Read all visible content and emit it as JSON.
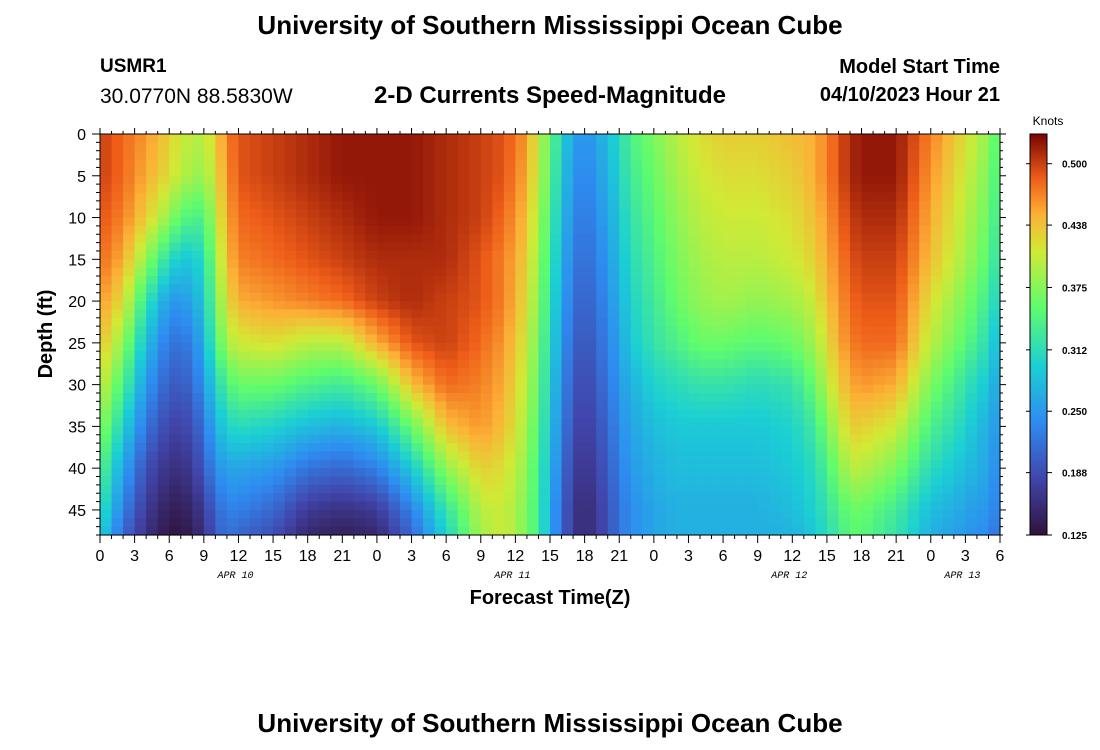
{
  "header": {
    "title": "University of Southern Mississippi Ocean Cube",
    "station_id": "USMR1",
    "coordinates": "30.0770N  88.5830W",
    "subtitle": "2-D Currents Speed-Magnitude",
    "model_start_label": "Model Start Time",
    "model_start_value": "04/10/2023 Hour 21"
  },
  "footer": {
    "title": "University of Southern Mississippi Ocean Cube"
  },
  "chart_data": {
    "type": "heatmap",
    "title": "2-D Currents Speed-Magnitude",
    "xlabel": "Forecast Time(Z)",
    "ylabel": "Depth (ft)",
    "x_unit": "hours since 04/10/2023 00Z",
    "xlim": [
      0,
      78
    ],
    "ylim": [
      48,
      0
    ],
    "x_ticks": [
      {
        "h": 0,
        "label": "0"
      },
      {
        "h": 3,
        "label": "3"
      },
      {
        "h": 6,
        "label": "6"
      },
      {
        "h": 9,
        "label": "9"
      },
      {
        "h": 12,
        "label": "12"
      },
      {
        "h": 15,
        "label": "15"
      },
      {
        "h": 18,
        "label": "18"
      },
      {
        "h": 21,
        "label": "21"
      },
      {
        "h": 24,
        "label": "0"
      },
      {
        "h": 27,
        "label": "3"
      },
      {
        "h": 30,
        "label": "6"
      },
      {
        "h": 33,
        "label": "9"
      },
      {
        "h": 36,
        "label": "12"
      },
      {
        "h": 39,
        "label": "15"
      },
      {
        "h": 42,
        "label": "18"
      },
      {
        "h": 45,
        "label": "21"
      },
      {
        "h": 48,
        "label": "0"
      },
      {
        "h": 51,
        "label": "3"
      },
      {
        "h": 54,
        "label": "6"
      },
      {
        "h": 57,
        "label": "9"
      },
      {
        "h": 60,
        "label": "12"
      },
      {
        "h": 63,
        "label": "15"
      },
      {
        "h": 66,
        "label": "18"
      },
      {
        "h": 69,
        "label": "21"
      },
      {
        "h": 72,
        "label": "0"
      },
      {
        "h": 75,
        "label": "3"
      },
      {
        "h": 78,
        "label": "6"
      }
    ],
    "y_ticks": [
      0,
      5,
      10,
      15,
      20,
      25,
      30,
      35,
      40,
      45
    ],
    "date_labels": [
      {
        "h": 12,
        "label": "APR 10"
      },
      {
        "h": 36,
        "label": "APR 11"
      },
      {
        "h": 60,
        "label": "APR 12"
      },
      {
        "h": 75,
        "label": "APR 13"
      }
    ],
    "colorbar": {
      "title": "Knots",
      "min": 0.125,
      "max": 0.53,
      "ticks": [
        "0.125",
        "0.188",
        "0.250",
        "0.312",
        "0.375",
        "0.438",
        "0.500"
      ]
    },
    "time_hours": [
      0,
      2,
      4,
      6,
      7,
      8,
      9,
      10,
      11,
      12,
      15,
      18,
      21,
      24,
      27,
      30,
      33,
      35,
      37,
      38,
      39,
      40,
      41,
      42,
      44,
      45,
      46,
      48,
      50,
      52,
      54,
      57,
      60,
      62,
      63,
      64,
      65,
      66,
      69,
      72,
      75,
      76,
      77,
      78
    ],
    "depth_ft": [
      0,
      5,
      10,
      15,
      20,
      25,
      30,
      35,
      40,
      45,
      48
    ],
    "values_knots_by_depth": [
      [
        0.5,
        0.48,
        0.46,
        0.43,
        0.41,
        0.4,
        0.4,
        0.43,
        0.47,
        0.49,
        0.5,
        0.51,
        0.52,
        0.52,
        0.52,
        0.51,
        0.5,
        0.49,
        0.46,
        0.4,
        0.36,
        0.3,
        0.26,
        0.24,
        0.28,
        0.31,
        0.34,
        0.37,
        0.4,
        0.42,
        0.43,
        0.43,
        0.44,
        0.45,
        0.47,
        0.49,
        0.51,
        0.52,
        0.52,
        0.47,
        0.42,
        0.4,
        0.38,
        0.34
      ],
      [
        0.5,
        0.48,
        0.45,
        0.42,
        0.4,
        0.39,
        0.38,
        0.42,
        0.46,
        0.49,
        0.5,
        0.51,
        0.52,
        0.52,
        0.52,
        0.51,
        0.5,
        0.49,
        0.45,
        0.4,
        0.35,
        0.29,
        0.25,
        0.23,
        0.27,
        0.3,
        0.33,
        0.36,
        0.39,
        0.41,
        0.42,
        0.42,
        0.43,
        0.45,
        0.47,
        0.49,
        0.51,
        0.52,
        0.52,
        0.46,
        0.41,
        0.39,
        0.37,
        0.33
      ],
      [
        0.49,
        0.47,
        0.43,
        0.38,
        0.35,
        0.34,
        0.34,
        0.4,
        0.45,
        0.48,
        0.49,
        0.5,
        0.51,
        0.52,
        0.52,
        0.51,
        0.5,
        0.48,
        0.44,
        0.39,
        0.34,
        0.28,
        0.24,
        0.22,
        0.26,
        0.29,
        0.32,
        0.35,
        0.38,
        0.4,
        0.41,
        0.41,
        0.42,
        0.44,
        0.46,
        0.48,
        0.5,
        0.51,
        0.51,
        0.45,
        0.4,
        0.38,
        0.36,
        0.32
      ],
      [
        0.48,
        0.45,
        0.38,
        0.31,
        0.29,
        0.29,
        0.31,
        0.38,
        0.44,
        0.47,
        0.48,
        0.49,
        0.5,
        0.51,
        0.51,
        0.51,
        0.49,
        0.47,
        0.43,
        0.38,
        0.33,
        0.27,
        0.23,
        0.21,
        0.25,
        0.28,
        0.31,
        0.34,
        0.37,
        0.39,
        0.4,
        0.4,
        0.41,
        0.43,
        0.45,
        0.47,
        0.49,
        0.5,
        0.5,
        0.44,
        0.39,
        0.37,
        0.35,
        0.31
      ],
      [
        0.46,
        0.42,
        0.32,
        0.25,
        0.25,
        0.26,
        0.29,
        0.36,
        0.42,
        0.45,
        0.46,
        0.47,
        0.48,
        0.5,
        0.51,
        0.5,
        0.49,
        0.47,
        0.42,
        0.37,
        0.32,
        0.26,
        0.22,
        0.2,
        0.24,
        0.27,
        0.3,
        0.33,
        0.36,
        0.38,
        0.39,
        0.38,
        0.39,
        0.41,
        0.44,
        0.46,
        0.48,
        0.49,
        0.49,
        0.42,
        0.37,
        0.35,
        0.33,
        0.29
      ],
      [
        0.44,
        0.38,
        0.28,
        0.22,
        0.22,
        0.23,
        0.27,
        0.34,
        0.39,
        0.41,
        0.42,
        0.4,
        0.4,
        0.45,
        0.49,
        0.5,
        0.48,
        0.46,
        0.41,
        0.36,
        0.31,
        0.25,
        0.21,
        0.19,
        0.23,
        0.26,
        0.29,
        0.32,
        0.34,
        0.36,
        0.36,
        0.35,
        0.36,
        0.39,
        0.42,
        0.45,
        0.47,
        0.48,
        0.48,
        0.4,
        0.35,
        0.33,
        0.31,
        0.27
      ],
      [
        0.41,
        0.34,
        0.25,
        0.2,
        0.2,
        0.21,
        0.25,
        0.3,
        0.34,
        0.36,
        0.36,
        0.34,
        0.33,
        0.36,
        0.44,
        0.48,
        0.47,
        0.45,
        0.4,
        0.35,
        0.3,
        0.24,
        0.2,
        0.18,
        0.22,
        0.25,
        0.27,
        0.3,
        0.31,
        0.32,
        0.32,
        0.31,
        0.32,
        0.36,
        0.4,
        0.43,
        0.45,
        0.46,
        0.45,
        0.37,
        0.32,
        0.3,
        0.29,
        0.25
      ],
      [
        0.38,
        0.3,
        0.22,
        0.18,
        0.18,
        0.19,
        0.22,
        0.27,
        0.3,
        0.31,
        0.3,
        0.28,
        0.27,
        0.29,
        0.36,
        0.44,
        0.46,
        0.44,
        0.39,
        0.34,
        0.29,
        0.23,
        0.19,
        0.17,
        0.21,
        0.24,
        0.26,
        0.28,
        0.29,
        0.29,
        0.29,
        0.29,
        0.3,
        0.33,
        0.37,
        0.4,
        0.43,
        0.43,
        0.41,
        0.34,
        0.3,
        0.28,
        0.27,
        0.24
      ],
      [
        0.35,
        0.26,
        0.19,
        0.16,
        0.16,
        0.17,
        0.2,
        0.24,
        0.26,
        0.26,
        0.25,
        0.22,
        0.21,
        0.23,
        0.29,
        0.38,
        0.43,
        0.42,
        0.38,
        0.33,
        0.28,
        0.22,
        0.18,
        0.16,
        0.2,
        0.23,
        0.25,
        0.27,
        0.28,
        0.28,
        0.28,
        0.28,
        0.29,
        0.31,
        0.34,
        0.37,
        0.4,
        0.4,
        0.37,
        0.31,
        0.28,
        0.27,
        0.26,
        0.23
      ],
      [
        0.32,
        0.23,
        0.17,
        0.14,
        0.14,
        0.15,
        0.17,
        0.21,
        0.23,
        0.23,
        0.21,
        0.17,
        0.16,
        0.17,
        0.23,
        0.32,
        0.4,
        0.41,
        0.37,
        0.33,
        0.27,
        0.21,
        0.17,
        0.15,
        0.19,
        0.22,
        0.24,
        0.26,
        0.27,
        0.27,
        0.27,
        0.27,
        0.28,
        0.3,
        0.32,
        0.34,
        0.36,
        0.36,
        0.33,
        0.28,
        0.26,
        0.25,
        0.25,
        0.22
      ],
      [
        0.3,
        0.21,
        0.16,
        0.13,
        0.13,
        0.14,
        0.16,
        0.2,
        0.22,
        0.21,
        0.19,
        0.15,
        0.14,
        0.15,
        0.21,
        0.3,
        0.39,
        0.41,
        0.37,
        0.33,
        0.27,
        0.21,
        0.17,
        0.15,
        0.19,
        0.22,
        0.24,
        0.26,
        0.27,
        0.27,
        0.27,
        0.27,
        0.27,
        0.29,
        0.31,
        0.33,
        0.35,
        0.35,
        0.32,
        0.27,
        0.25,
        0.24,
        0.24,
        0.21
      ]
    ]
  }
}
